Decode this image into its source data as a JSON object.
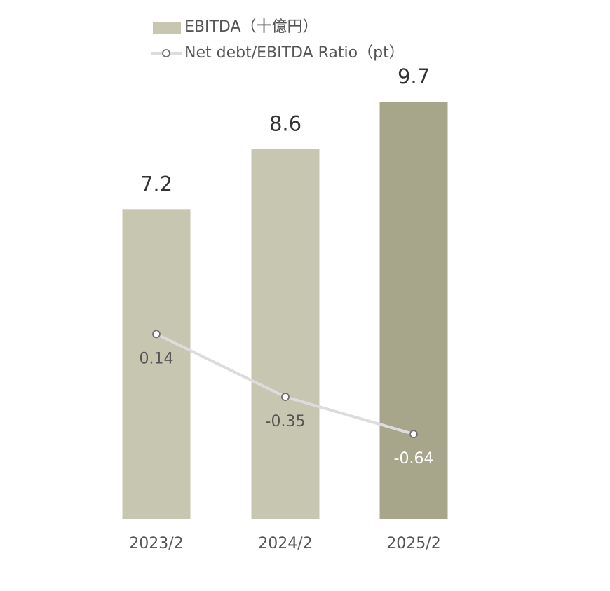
{
  "chart_data": {
    "type": "bar",
    "categories": [
      "2023/2",
      "2024/2",
      "2025/2"
    ],
    "series": [
      {
        "name": "EBITDA（十億円）",
        "kind": "bar",
        "values": [
          7.2,
          8.6,
          9.7
        ],
        "labels": [
          "7.2",
          "8.6",
          "9.7"
        ]
      },
      {
        "name": "Net debt/EBITDA Ratio（pt）",
        "kind": "line",
        "values": [
          0.14,
          -0.35,
          -0.64
        ],
        "labels": [
          "0.14",
          "-0.35",
          "-0.64"
        ]
      }
    ],
    "ylim_bar": [
      0,
      9.7
    ],
    "ylim_line": [
      -1.3,
      1.95
    ],
    "legend_position": "top-left",
    "grid": false
  },
  "colors": {
    "bar": "#c7c6b1",
    "bar_highlight": "#a7a68a",
    "line": "#dcdcdc",
    "marker_fill": "#ffffff",
    "marker_stroke": "#6f6f6f",
    "text_dark": "#333333",
    "text_mid": "#555555",
    "text_on_highlight": "#ffffff"
  }
}
